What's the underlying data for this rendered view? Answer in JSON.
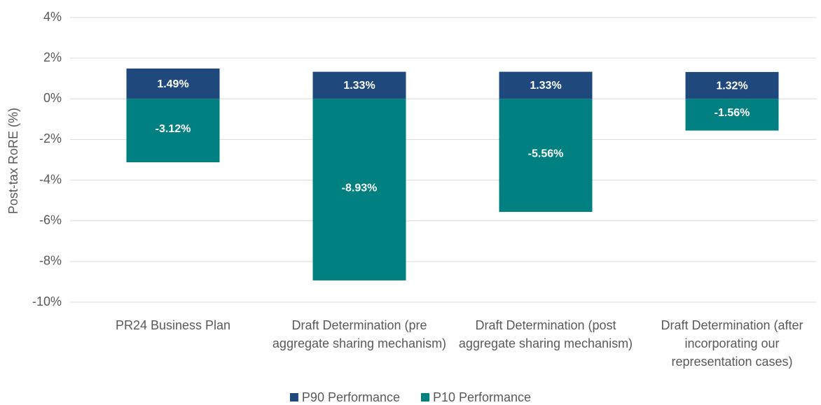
{
  "chart_data": {
    "type": "bar",
    "stacked": true,
    "ylabel": "Post-tax RoRE (%)",
    "categories": [
      "PR24 Business Plan",
      "Draft Determination (pre aggregate sharing mechanism)",
      "Draft Determination (post aggregate sharing mechanism)",
      "Draft Determination (after incorporating our representation cases)"
    ],
    "series": [
      {
        "name": "P90 Performance",
        "color": "#1f497d",
        "values": [
          1.49,
          1.33,
          1.33,
          1.32
        ],
        "value_labels": [
          "1.49%",
          "1.33%",
          "1.33%",
          "1.32%"
        ]
      },
      {
        "name": "P10 Performance",
        "color": "#008080",
        "values": [
          -3.12,
          -8.93,
          -5.56,
          -1.56
        ],
        "value_labels": [
          "-3.12%",
          "-8.93%",
          "-5.56%",
          "-1.56%"
        ]
      }
    ],
    "ylim": [
      -10,
      4
    ],
    "yticks": [
      {
        "value": -10,
        "label": "-10%"
      },
      {
        "value": -8,
        "label": "-8%"
      },
      {
        "value": -6,
        "label": "-6%"
      },
      {
        "value": -4,
        "label": "-4%"
      },
      {
        "value": -2,
        "label": "-2%"
      },
      {
        "value": 0,
        "label": "0%"
      },
      {
        "value": 2,
        "label": "2%"
      },
      {
        "value": 4,
        "label": "4%"
      }
    ],
    "grid": true,
    "legend": "bottom"
  }
}
